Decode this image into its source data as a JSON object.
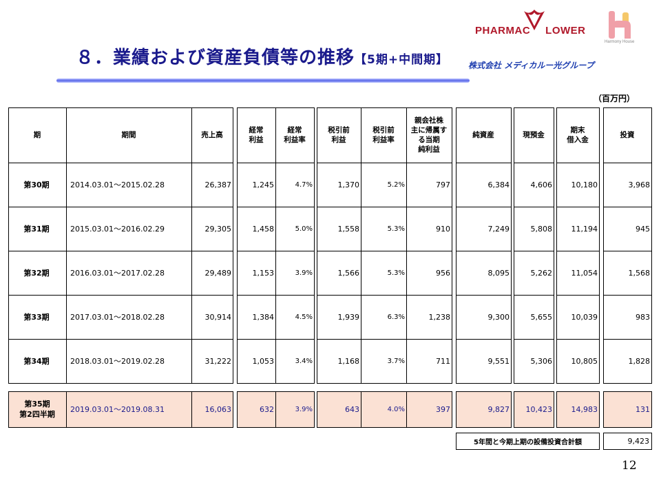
{
  "title": {
    "main": "８．業績および資産負債等の推移",
    "sub": "【5期+中間期】"
  },
  "logos": {
    "pharmac": "PHARMAC",
    "flower": "LOWER",
    "harmony": "Harmony House",
    "medical": "株式会社 メディカルー光グループ"
  },
  "unit": "（百万円）",
  "headers": [
    "期",
    "期間",
    "売上高",
    "経常\n利益",
    "経常\n利益率",
    "税引前\n利益",
    "税引前\n利益率",
    "親会社株\n主に帰属す\nる当期\n純利益",
    "純資産",
    "現預金",
    "期末\n借入金",
    "投資"
  ],
  "rows": [
    {
      "period": "第30期",
      "range": "2014.03.01～2015.02.28",
      "sales": "26,387",
      "ord": "1,245",
      "ordr": "4.7%",
      "pre": "1,370",
      "prer": "5.2%",
      "net": "797",
      "assets": "6,384",
      "cash": "4,606",
      "debt": "10,180",
      "inv": "3,968"
    },
    {
      "period": "第31期",
      "range": "2015.03.01～2016.02.29",
      "sales": "29,305",
      "ord": "1,458",
      "ordr": "5.0%",
      "pre": "1,558",
      "prer": "5.3%",
      "net": "910",
      "assets": "7,249",
      "cash": "5,808",
      "debt": "11,194",
      "inv": "945"
    },
    {
      "period": "第32期",
      "range": "2016.03.01～2017.02.28",
      "sales": "29,489",
      "ord": "1,153",
      "ordr": "3.9%",
      "pre": "1,566",
      "prer": "5.3%",
      "net": "956",
      "assets": "8,095",
      "cash": "5,262",
      "debt": "11,054",
      "inv": "1,568"
    },
    {
      "period": "第33期",
      "range": "2017.03.01～2018.02.28",
      "sales": "30,914",
      "ord": "1,384",
      "ordr": "4.5%",
      "pre": "1,939",
      "prer": "6.3%",
      "net": "1,238",
      "assets": "9,300",
      "cash": "5,655",
      "debt": "10,039",
      "inv": "983"
    },
    {
      "period": "第34期",
      "range": "2018.03.01～2019.02.28",
      "sales": "31,222",
      "ord": "1,053",
      "ordr": "3.4%",
      "pre": "1,168",
      "prer": "3.7%",
      "net": "711",
      "assets": "9,551",
      "cash": "5,306",
      "debt": "10,805",
      "inv": "1,828"
    }
  ],
  "current": {
    "period_line1": "第35期",
    "period_line2": "第2四半期",
    "range": "2019.03.01～2019.08.31",
    "sales": "16,063",
    "ord": "632",
    "ordr": "3.9%",
    "pre": "643",
    "prer": "4.0%",
    "net": "397",
    "assets": "9,827",
    "cash": "10,423",
    "debt": "14,983",
    "inv": "131"
  },
  "total": {
    "label": "5年間と今期上期の設備投資合計額",
    "value": "9,423"
  },
  "page_number": "12",
  "colors": {
    "title": "#1a1a8c",
    "highlight": "#fbe1d4",
    "brand_red": "#b0182a"
  }
}
